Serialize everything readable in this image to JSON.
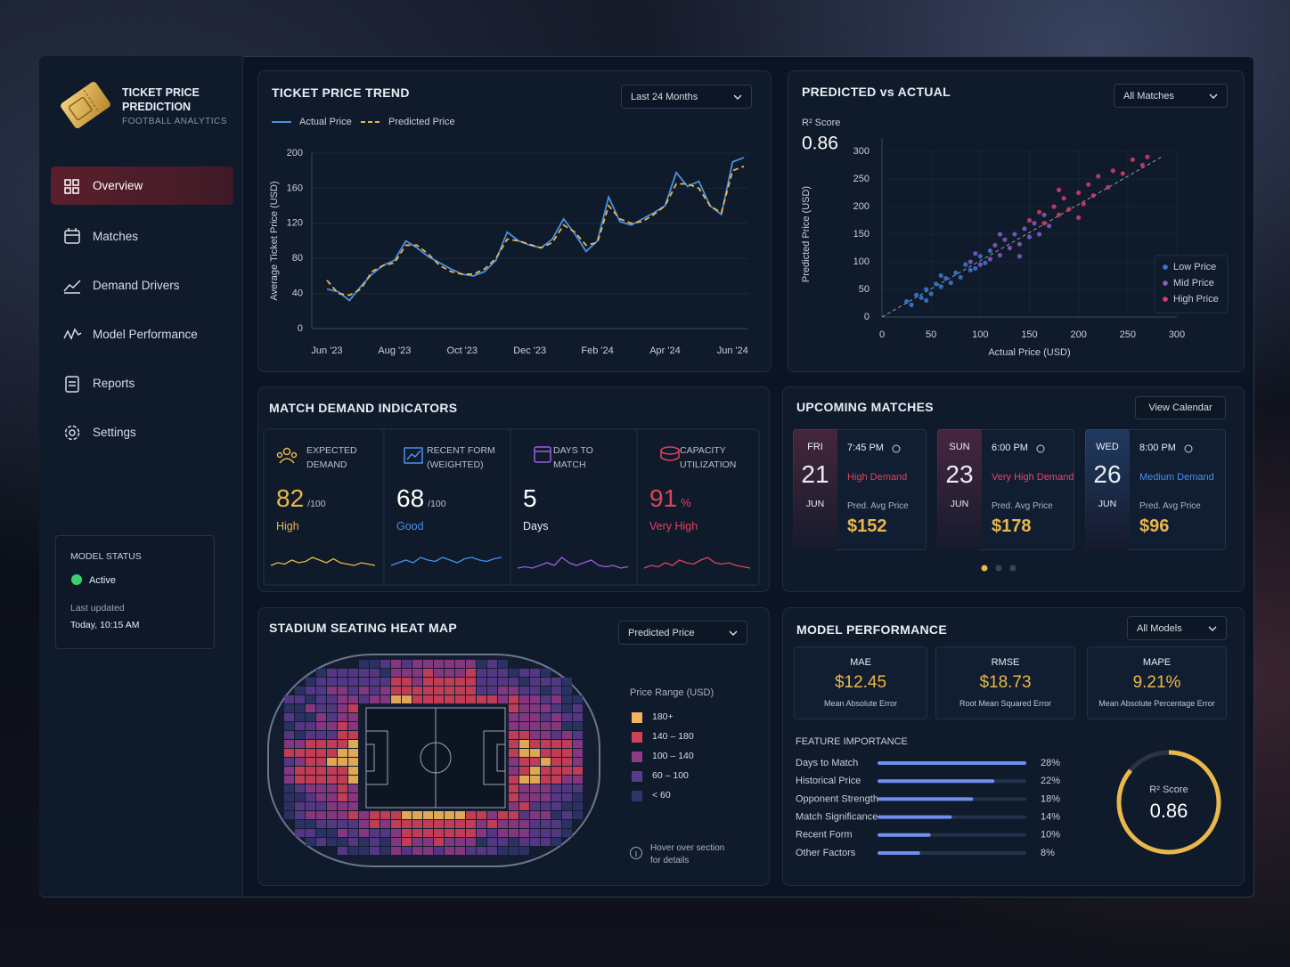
{
  "sidebar": {
    "title": "TICKET PRICE PREDICTION",
    "subtitle": "FOOTBALL ANALYTICS",
    "nav": [
      "Overview",
      "Matches",
      "Demand Drivers",
      "Model Performance",
      "Reports",
      "Settings"
    ],
    "model_status": {
      "title": "MODEL STATUS",
      "state": "Active",
      "updated_label": "Last updated",
      "updated": "Today, 10:15 AM"
    }
  },
  "filters": {
    "trend": "Last 24 Months",
    "scatter": "All Matches",
    "heatmap": "Predicted Price",
    "model": "All Models"
  },
  "demand": {
    "title": "MATCH DEMAND INDICATORS",
    "cards": [
      {
        "label": "EXPECTED DEMAND",
        "value": 82,
        "unit": "/100",
        "status": "High",
        "color": "#e8b84a",
        "value_color": "#e8b84a",
        "ylim": [
          0,
          10
        ],
        "sparkline": [
          3,
          4,
          3.5,
          5,
          4,
          4.5,
          6,
          5,
          4,
          5.5,
          4,
          3.5,
          3,
          4,
          3.5,
          3
        ]
      },
      {
        "label": "RECENT FORM (WEIGHTED)",
        "value": 68,
        "unit": "/100",
        "status": "Good",
        "color": "#4a8ff0",
        "value_color": "#ffffff",
        "ylim": [
          0,
          10
        ],
        "sparkline": [
          3,
          4,
          5,
          4,
          6,
          5,
          4.5,
          6,
          5,
          4,
          5.5,
          6,
          5,
          4.5,
          5.5,
          6
        ]
      },
      {
        "label": "DAYS TO MATCH",
        "value": 5,
        "status": "Days",
        "color": "#9b5de5",
        "value_color": "#ffffff",
        "ylim": [
          0,
          10
        ],
        "sparkline": [
          2,
          2.5,
          2,
          3,
          4,
          3,
          6,
          4,
          3,
          4,
          5,
          3,
          2.5,
          3,
          2,
          2.5
        ]
      },
      {
        "label": "CAPACITY UTILIZATION",
        "value": 91,
        "unit": "%",
        "status": "Very High",
        "color": "#e0435e",
        "value_color": "#e0435e",
        "ylim": [
          0,
          10
        ],
        "sparkline": [
          2,
          3,
          2.5,
          4,
          3,
          5,
          4,
          3.5,
          5,
          6,
          4,
          3.5,
          4,
          3,
          2.5,
          2
        ]
      }
    ]
  },
  "upcoming": {
    "title": "UPCOMING MATCHES",
    "action": "View Calendar",
    "price_label": "Pred. Avg Price",
    "matches": [
      {
        "day": "FRI",
        "date": 21,
        "month": "JUN",
        "time": "7:45 PM",
        "demand": "High Demand",
        "price": "$152",
        "accent": "#e0435e"
      },
      {
        "day": "SUN",
        "date": 23,
        "month": "JUN",
        "time": "6:00 PM",
        "demand": "Very High Demand",
        "price": "$178",
        "accent": "#e8436e"
      },
      {
        "day": "WED",
        "date": 26,
        "month": "JUN",
        "time": "8:00 PM",
        "demand": "Medium Demand",
        "price": "$96",
        "accent": "#4a8ff0"
      }
    ]
  },
  "heatmap": {
    "title": "STADIUM SEATING HEAT MAP",
    "legend_title": "Price Range (USD)",
    "ranges": [
      {
        "label": "180+",
        "color": "#f0b45a"
      },
      {
        "label": "140 – 180",
        "color": "#d0405a"
      },
      {
        "label": "100 – 140",
        "color": "#8e3a86"
      },
      {
        "label": "60 – 100",
        "color": "#5a3a8a"
      },
      {
        "label": "< 60",
        "color": "#2e3468"
      }
    ],
    "hint": "Hover over section for details"
  },
  "model": {
    "title": "MODEL PERFORMANCE",
    "metrics": [
      {
        "name": "MAE",
        "value": "$12.45",
        "description": "Mean Absolute Error"
      },
      {
        "name": "RMSE",
        "value": "$18.73",
        "description": "Root Mean Squared Error"
      },
      {
        "name": "MAPE",
        "value": "9.21%",
        "description": "Mean Absolute Percentage Error"
      }
    ]
  },
  "chart_data": [
    {
      "type": "line",
      "title": "TICKET PRICE TREND",
      "ylabel": "Average Ticket Price (USD)",
      "categories": [
        "Jun '23",
        null,
        null,
        null,
        null,
        null,
        "Aug '23",
        null,
        null,
        null,
        null,
        null,
        "Oct '23",
        null,
        null,
        null,
        null,
        null,
        "Dec '23",
        null,
        null,
        null,
        null,
        null,
        "Feb '24",
        null,
        null,
        null,
        null,
        null,
        "Apr '24",
        null,
        null,
        null,
        null,
        null,
        "Jun '24",
        null
      ],
      "series": [
        {
          "name": "Actual Price",
          "color": "#4a90e2",
          "values": [
            45,
            42,
            32,
            48,
            62,
            72,
            78,
            100,
            92,
            82,
            75,
            68,
            62,
            60,
            65,
            78,
            110,
            100,
            95,
            92,
            102,
            125,
            108,
            88,
            100,
            150,
            122,
            118,
            125,
            132,
            140,
            178,
            162,
            168,
            140,
            130,
            190,
            195
          ]
        },
        {
          "name": "Predicted Price",
          "color": "#e8b84a",
          "dashed": true,
          "values": [
            55,
            40,
            38,
            45,
            65,
            72,
            75,
            95,
            95,
            85,
            72,
            65,
            62,
            62,
            68,
            80,
            102,
            100,
            96,
            92,
            98,
            118,
            110,
            95,
            98,
            140,
            125,
            120,
            122,
            130,
            140,
            165,
            165,
            160,
            140,
            132,
            180,
            185
          ]
        }
      ],
      "ylim": [
        0,
        200
      ],
      "yticks": [
        0,
        40,
        80,
        120,
        160,
        200
      ],
      "grid": true
    },
    {
      "type": "scatter",
      "title": "PREDICTED vs ACTUAL",
      "annotation_label": "R² Score",
      "annotation_value": 0.86,
      "xlabel": "Actual Price (USD)",
      "ylabel": "Predicted Price (USD)",
      "xlim": [
        0,
        300
      ],
      "ylim": [
        0,
        300
      ],
      "xticks": [
        0,
        50,
        100,
        150,
        200,
        250,
        300
      ],
      "yticks": [
        0,
        50,
        100,
        150,
        200,
        250,
        300
      ],
      "grid": true,
      "legend": "lower right",
      "series": [
        {
          "name": "Low Price",
          "color": "#3a7bd5",
          "x": [
            25,
            30,
            35,
            40,
            45,
            50,
            55,
            60,
            65,
            70,
            75,
            80,
            85,
            90,
            95,
            100,
            105,
            110,
            45,
            60
          ],
          "values": [
            28,
            22,
            40,
            35,
            50,
            42,
            60,
            55,
            70,
            62,
            80,
            72,
            95,
            85,
            88,
            110,
            98,
            120,
            30,
            75
          ]
        },
        {
          "name": "Mid Price",
          "color": "#8a5cc8",
          "x": [
            90,
            95,
            100,
            110,
            115,
            120,
            125,
            130,
            135,
            140,
            145,
            150,
            155,
            160,
            165,
            170,
            120,
            140
          ],
          "values": [
            100,
            115,
            95,
            105,
            130,
            112,
            140,
            125,
            150,
            132,
            160,
            145,
            170,
            150,
            185,
            165,
            150,
            110
          ]
        },
        {
          "name": "High Price",
          "color": "#d6406a",
          "x": [
            150,
            160,
            165,
            175,
            180,
            185,
            190,
            200,
            205,
            210,
            215,
            220,
            230,
            235,
            245,
            255,
            265,
            270,
            200,
            180
          ],
          "values": [
            175,
            190,
            170,
            200,
            185,
            215,
            195,
            225,
            205,
            240,
            220,
            255,
            235,
            265,
            260,
            285,
            275,
            290,
            180,
            230
          ]
        }
      ]
    },
    {
      "type": "bar",
      "orientation": "horizontal",
      "title": "FEATURE IMPORTANCE",
      "categories": [
        "Days to Match",
        "Historical Price",
        "Opponent Strength",
        "Match Significance",
        "Recent Form",
        "Other Factors"
      ],
      "values": [
        28,
        22,
        18,
        14,
        10,
        8
      ],
      "value_labels": [
        "28%",
        "22%",
        "18%",
        "14%",
        "10%",
        "8%"
      ],
      "xlim": [
        0,
        28
      ],
      "color": "#6f8ff0"
    },
    {
      "type": "gauge",
      "title": "R² Score",
      "value": 0.86,
      "ylim": [
        0,
        1
      ],
      "color": "#e8b84a"
    }
  ]
}
